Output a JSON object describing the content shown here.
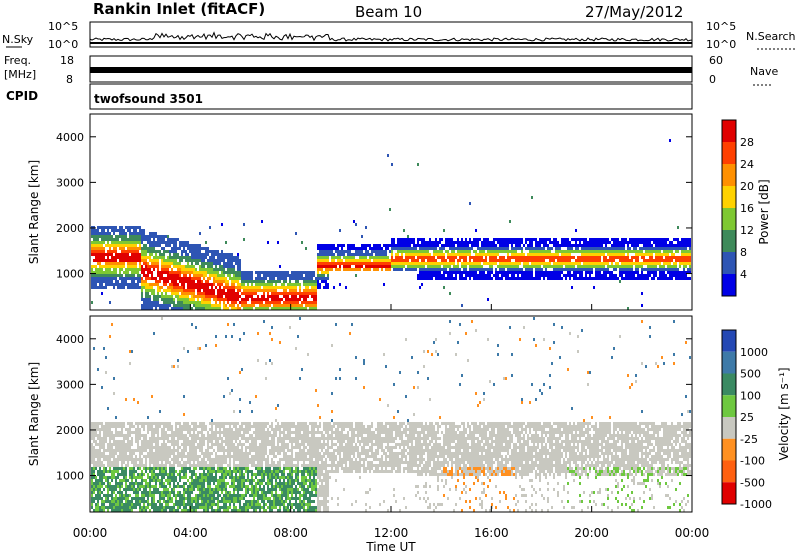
{
  "header": {
    "station": "Rankin Inlet (fitACF)",
    "beam": "Beam 10",
    "date": "27/May/2012"
  },
  "noise_panel": {
    "left_label": "N.Sky",
    "right_label": "N.Search",
    "left_ticks": [
      "10^5",
      "10^0"
    ],
    "right_ticks": [
      "10^5",
      "10^0"
    ]
  },
  "freq_panel": {
    "left_label_line1": "Freq.",
    "left_label_line2": "[MHz]",
    "left_ticks": [
      "18",
      "8"
    ],
    "right_label": "Nave",
    "right_ticks": [
      "60",
      "0"
    ]
  },
  "cpid_panel": {
    "label": "CPID",
    "program": "twofsound 3501"
  },
  "colors": {
    "power_scale": [
      "#0000e6",
      "#2e55b4",
      "#3e8a5a",
      "#7ec832",
      "#ffd200",
      "#ff9000",
      "#ff4000",
      "#e00000"
    ],
    "velocity_scale": [
      "#2448b4",
      "#3e7aa8",
      "#3a8a62",
      "#6ec840",
      "#c8c8c0",
      "#ff9020",
      "#ff6010",
      "#e00000"
    ]
  },
  "chart_data": [
    {
      "type": "heatmap",
      "name": "power",
      "ylabel": "Slant Range [km]",
      "yticks": [
        1000,
        2000,
        3000,
        4000
      ],
      "ylim": [
        200,
        4500
      ],
      "xlim": [
        0,
        24
      ],
      "xticks": [
        "00:00",
        "04:00",
        "08:00",
        "12:00",
        "16:00",
        "20:00",
        "00:00"
      ],
      "colorbar_label": "Power [dB]",
      "colorbar_ticks": [
        "4",
        "8",
        "12",
        "16",
        "20",
        "24",
        "28"
      ],
      "colorbar_range": [
        0,
        32
      ]
    },
    {
      "type": "heatmap",
      "name": "velocity",
      "ylabel": "Slant Range [km]",
      "yticks": [
        1000,
        2000,
        3000,
        4000
      ],
      "ylim": [
        200,
        4500
      ],
      "xlim": [
        0,
        24
      ],
      "xticks": [
        "00:00",
        "04:00",
        "08:00",
        "12:00",
        "16:00",
        "20:00",
        "00:00"
      ],
      "xlabel": "Time UT",
      "colorbar_label": "Velocity [m s⁻¹]",
      "colorbar_ticks": [
        "1000",
        "500",
        "100",
        "25",
        "-25",
        "-100",
        "-500",
        "-1000"
      ]
    }
  ]
}
